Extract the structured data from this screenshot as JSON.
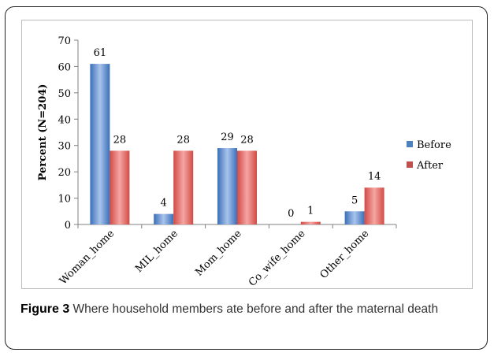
{
  "chart_data": {
    "type": "bar",
    "categories": [
      "Woman_home",
      "MIL_home",
      "Mom_home",
      "Co_wife_home",
      "Other_home"
    ],
    "series": [
      {
        "name": "Before",
        "values": [
          61,
          4,
          29,
          0,
          5
        ],
        "color": "#4f81bd"
      },
      {
        "name": "After",
        "values": [
          28,
          28,
          28,
          1,
          14
        ],
        "color": "#c0504d"
      }
    ],
    "data_labels": {
      "Before": [
        "61",
        "4",
        "29",
        "0",
        "5"
      ],
      "After": [
        "28",
        "28",
        "28",
        "1",
        "14"
      ]
    },
    "ylabel": "Percent (N=204)",
    "ylim": [
      0,
      70
    ],
    "yticks": [
      0,
      10,
      20,
      30,
      40,
      50,
      60,
      70
    ],
    "grid": false,
    "legend_position": "right"
  },
  "caption": {
    "label": "Figure 3",
    "text": " Where household members ate before and after the maternal death"
  }
}
